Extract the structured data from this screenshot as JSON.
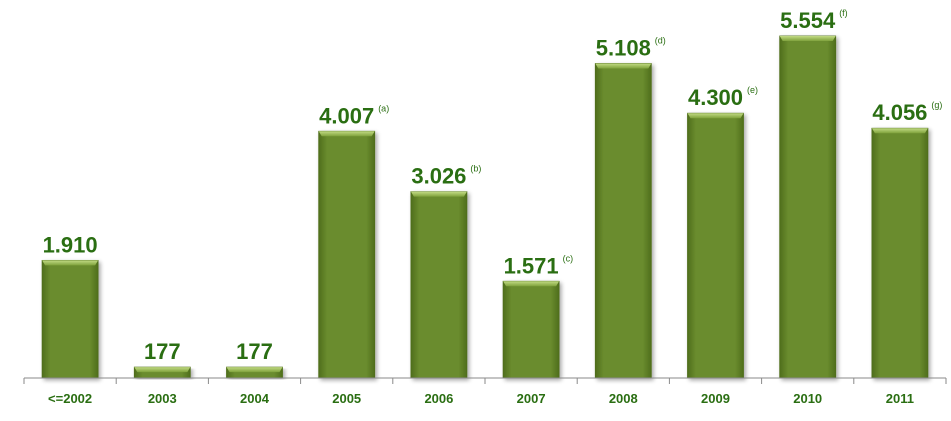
{
  "chart_data": {
    "type": "bar",
    "title": "",
    "xlabel": "",
    "ylabel": "",
    "categories": [
      "<=2002",
      "2003",
      "2004",
      "2005",
      "2006",
      "2007",
      "2008",
      "2009",
      "2010",
      "2011"
    ],
    "values": [
      1910,
      177,
      177,
      4007,
      3026,
      1571,
      5108,
      4300,
      5554,
      4056
    ],
    "value_labels": [
      "1.910",
      "177",
      "177",
      "4.007",
      "3.026",
      "1.571",
      "5.108",
      "4.300",
      "5.554",
      "4.056"
    ],
    "notes": [
      "",
      "",
      "",
      "(a)",
      "(b)",
      "(c)",
      "(d)",
      "(e)",
      "(f)",
      "(g)"
    ],
    "ylim": [
      0,
      5554
    ],
    "grid": false,
    "legend": "none",
    "colors": {
      "bar": "#6a8c2e",
      "bar_dark": "#4f6e1c",
      "bar_light": "#a7c463",
      "label": "#2a6e12",
      "axis": "#8a8a8a",
      "tick": "#2a6e12"
    }
  }
}
